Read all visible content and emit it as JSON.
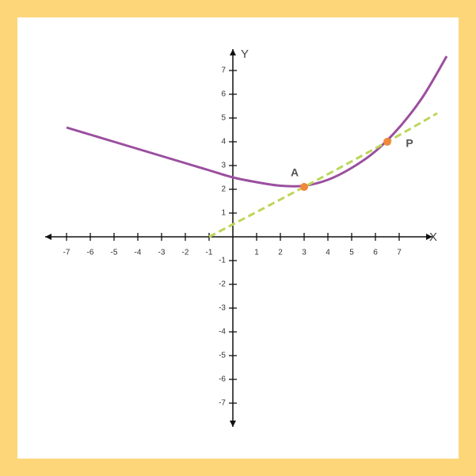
{
  "chart_data": {
    "type": "line",
    "x_label": "X",
    "y_label": "Y",
    "xlim": [
      -7.9,
      8.4
    ],
    "ylim": [
      -8,
      7.9
    ],
    "xticks": [
      -7,
      -6,
      -5,
      -4,
      -3,
      -2,
      -1,
      1,
      2,
      3,
      4,
      5,
      6,
      7
    ],
    "yticks": [
      -7,
      -6,
      -5,
      -4,
      -3,
      -2,
      -1,
      1,
      2,
      3,
      4,
      5,
      6,
      7
    ],
    "series": [
      {
        "color": "#9b4f9f",
        "style": "solid",
        "x": [
          -7,
          -6,
          -5,
          -4,
          -3,
          -2,
          -1,
          0,
          1,
          2,
          3,
          4,
          5,
          6,
          7,
          8,
          9
        ],
        "values": [
          4.6,
          4.3,
          4.0,
          3.7,
          3.4,
          3.1,
          2.8,
          2.5,
          2.3,
          2.15,
          2.15,
          2.4,
          2.9,
          3.6,
          4.6,
          5.9,
          7.6
        ]
      },
      {
        "color": "#bcd65a",
        "style": "dashed",
        "x": [
          -1,
          3,
          6.5,
          8.6
        ],
        "values": [
          0,
          2.1,
          4,
          5.2
        ]
      }
    ],
    "points": [
      {
        "label": "A",
        "x": 3,
        "y": 2.1,
        "color": "#f0883a"
      },
      {
        "label": "P",
        "x": 6.5,
        "y": 4,
        "color": "#f0883a"
      }
    ]
  }
}
